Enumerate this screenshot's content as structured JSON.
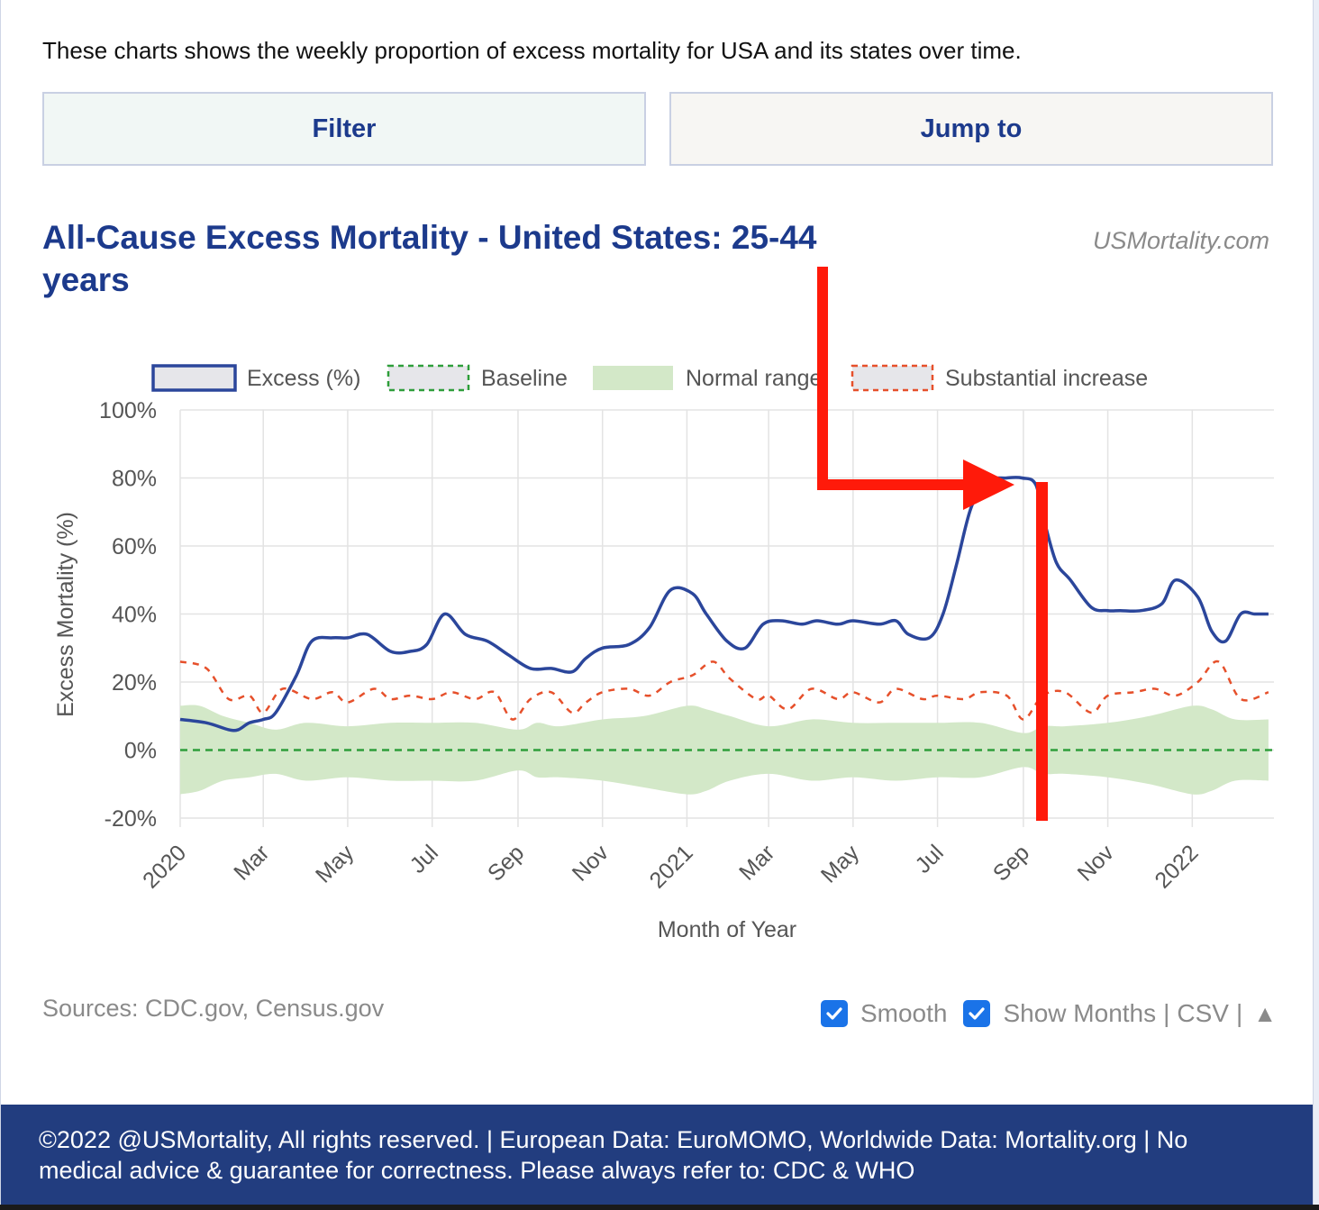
{
  "intro": "These charts shows the weekly proportion of excess mortality for USA and its states over time.",
  "buttons": {
    "filter": "Filter",
    "jump": "Jump to"
  },
  "chart_header": {
    "title": "All-Cause Excess Mortality - United States: 25-44 years",
    "brand": "USMortality.com"
  },
  "chart_data": {
    "type": "line",
    "xlabel": "Month of Year",
    "ylabel": "Excess Mortality (%)",
    "ylim": [
      -20,
      100
    ],
    "yticks": [
      "100%",
      "80%",
      "60%",
      "40%",
      "20%",
      "0%",
      "-20%"
    ],
    "xticks": [
      "2020",
      "Mar",
      "May",
      "Jul",
      "Sep",
      "Nov",
      "2021",
      "Mar",
      "May",
      "Jul",
      "Sep",
      "Nov",
      "2022"
    ],
    "grid": true,
    "legend_position": "top",
    "legend": [
      {
        "name": "Excess (%)",
        "color": "#2b469b"
      },
      {
        "name": "Baseline",
        "color": "#2e9e3a"
      },
      {
        "name": "Normal range",
        "color": "#d3e8c8"
      },
      {
        "name": "Substantial increase",
        "color": "#e6502b"
      }
    ],
    "series": [
      {
        "name": "Excess (%)",
        "x": [
          "2020-01-01",
          "2020-01-20",
          "2020-02-05",
          "2020-02-12",
          "2020-02-20",
          "2020-03-01",
          "2020-03-10",
          "2020-03-25",
          "2020-04-05",
          "2020-04-20",
          "2020-05-01",
          "2020-05-15",
          "2020-06-01",
          "2020-06-15",
          "2020-06-27",
          "2020-07-10",
          "2020-07-25",
          "2020-08-10",
          "2020-08-25",
          "2020-09-10",
          "2020-09-25",
          "2020-10-10",
          "2020-10-20",
          "2020-11-01",
          "2020-11-20",
          "2020-12-05",
          "2020-12-20",
          "2021-01-05",
          "2021-01-15",
          "2021-01-30",
          "2021-02-12",
          "2021-02-25",
          "2021-03-10",
          "2021-03-25",
          "2021-04-05",
          "2021-04-20",
          "2021-05-01",
          "2021-05-20",
          "2021-06-01",
          "2021-06-10",
          "2021-06-25",
          "2021-07-05",
          "2021-07-15",
          "2021-07-25",
          "2021-08-05",
          "2021-08-20",
          "2021-08-31",
          "2021-09-10",
          "2021-09-17",
          "2021-09-25",
          "2021-10-05",
          "2021-10-20",
          "2021-11-01",
          "2021-11-10",
          "2021-11-25",
          "2021-12-10",
          "2021-12-20",
          "2022-01-05",
          "2022-01-15",
          "2022-01-25",
          "2022-02-05",
          "2022-02-15",
          "2022-02-25"
        ],
        "values": [
          9,
          8,
          6,
          6,
          8,
          9,
          11,
          22,
          32,
          33,
          33,
          34,
          29,
          29,
          31,
          40,
          34,
          32,
          28,
          24,
          24,
          23,
          27,
          30,
          31,
          36,
          47,
          46,
          40,
          32,
          30,
          37,
          38,
          37,
          38,
          37,
          38,
          37,
          38,
          34,
          33,
          40,
          55,
          71,
          79,
          80,
          80,
          78,
          66,
          55,
          50,
          42,
          41,
          41,
          41,
          43,
          50,
          45,
          35,
          32,
          40,
          40,
          40
        ]
      },
      {
        "name": "Substantial increase",
        "x": [
          "2020-01-01",
          "2020-01-20",
          "2020-02-05",
          "2020-02-20",
          "2020-03-01",
          "2020-03-15",
          "2020-04-05",
          "2020-04-20",
          "2020-05-01",
          "2020-05-20",
          "2020-06-01",
          "2020-06-15",
          "2020-07-01",
          "2020-07-15",
          "2020-08-01",
          "2020-08-15",
          "2020-08-28",
          "2020-09-10",
          "2020-09-25",
          "2020-10-10",
          "2020-10-20",
          "2020-11-01",
          "2020-11-20",
          "2020-12-05",
          "2020-12-20",
          "2021-01-05",
          "2021-01-20",
          "2021-02-01",
          "2021-02-20",
          "2021-03-01",
          "2021-03-15",
          "2021-04-01",
          "2021-04-20",
          "2021-05-01",
          "2021-05-20",
          "2021-06-01",
          "2021-06-20",
          "2021-07-01",
          "2021-07-20",
          "2021-08-01",
          "2021-08-20",
          "2021-09-01",
          "2021-09-15",
          "2021-10-01",
          "2021-10-20",
          "2021-11-01",
          "2021-11-20",
          "2021-12-05",
          "2021-12-20",
          "2022-01-05",
          "2022-01-20",
          "2022-02-05",
          "2022-02-25"
        ],
        "values": [
          26,
          24,
          15,
          16,
          11,
          18,
          15,
          17,
          14,
          18,
          15,
          16,
          15,
          17,
          15,
          17,
          9,
          15,
          17,
          11,
          14,
          17,
          18,
          16,
          20,
          22,
          26,
          21,
          15,
          16,
          12,
          18,
          15,
          17,
          14,
          18,
          15,
          16,
          15,
          17,
          16,
          9,
          16,
          17,
          11,
          16,
          17,
          18,
          16,
          20,
          26,
          15,
          17
        ]
      }
    ],
    "baseline_value": 0,
    "normal_range": {
      "x": [
        "2020-01-01",
        "2020-01-15",
        "2020-02-01",
        "2020-02-20",
        "2020-03-10",
        "2020-04-01",
        "2020-05-01",
        "2020-06-01",
        "2020-07-01",
        "2020-08-01",
        "2020-09-01",
        "2020-09-15",
        "2020-10-01",
        "2020-11-01",
        "2020-12-01",
        "2021-01-01",
        "2021-01-15",
        "2021-02-01",
        "2021-03-01",
        "2021-04-01",
        "2021-05-01",
        "2021-06-01",
        "2021-07-01",
        "2021-08-01",
        "2021-09-01",
        "2021-09-15",
        "2021-10-01",
        "2021-11-01",
        "2021-12-01",
        "2022-01-01",
        "2022-01-15",
        "2022-02-01",
        "2022-02-25"
      ],
      "upper": [
        13,
        13,
        10,
        8,
        6,
        8,
        7,
        8,
        8,
        8,
        6,
        8,
        7,
        9,
        10,
        13,
        12,
        10,
        7,
        9,
        8,
        8,
        8,
        8,
        5,
        7,
        7,
        8,
        10,
        13,
        12,
        9,
        9
      ],
      "lower": [
        -13,
        -12,
        -9,
        -8,
        -7,
        -9,
        -8,
        -9,
        -9,
        -9,
        -6,
        -8,
        -8,
        -9,
        -11,
        -13,
        -12,
        -9,
        -7,
        -9,
        -8,
        -9,
        -8,
        -8,
        -5,
        -7,
        -7,
        -8,
        -10,
        -13,
        -12,
        -9,
        -9
      ]
    }
  },
  "sources": "Sources: CDC.gov, Census.gov",
  "controls": {
    "smooth": "Smooth",
    "show_months": "Show Months",
    "sep": "|",
    "csv": "CSV",
    "up": "▲"
  },
  "footer": "©2022 @USMortality, All rights reserved. | European Data: EuroMOMO, Worldwide Data: Mortality.org | No medical advice & guarantee for correctness. Please always refer to: CDC & WHO",
  "colors": {
    "annotation": "#ff1a0a",
    "title_blue": "#1c3a8c",
    "footer_bg": "#223d7f"
  }
}
